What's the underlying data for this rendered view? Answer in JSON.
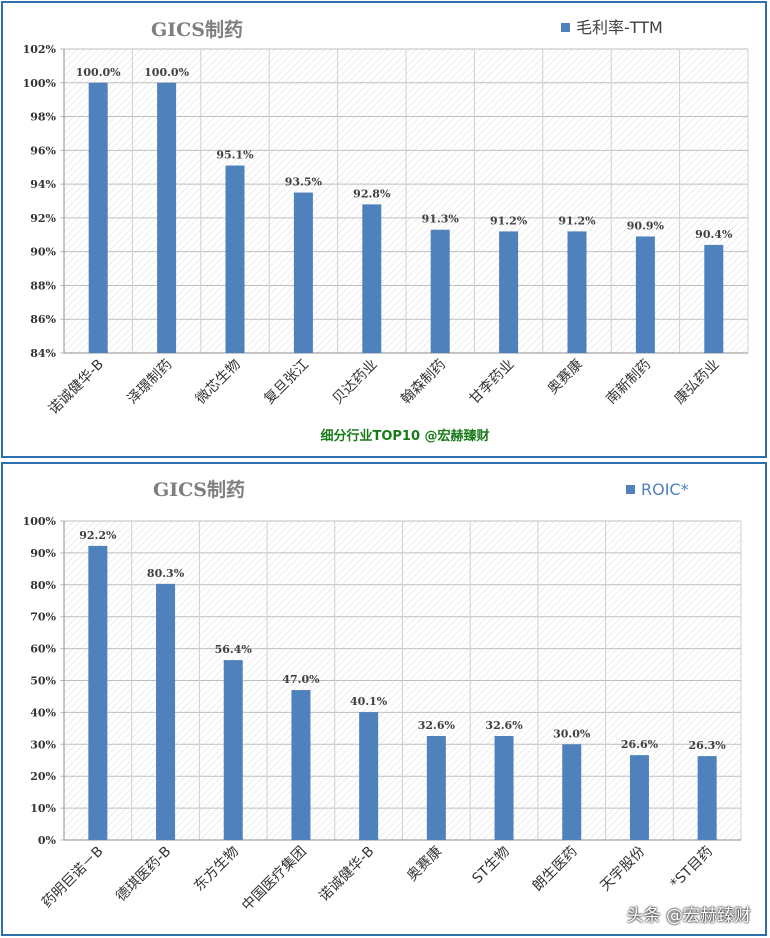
{
  "colors": {
    "bar": "#4f81bd",
    "frame": "#2f6fb0",
    "title": "#7f7f7f",
    "note": "#1a7a1a"
  },
  "chart_data": [
    {
      "type": "bar",
      "title": "GICS制药",
      "legend": "毛利率-TTM",
      "legend_position": "top-right",
      "note": "细分行业TOP10 @宏赫臻财",
      "grid": true,
      "ylim": [
        84,
        102
      ],
      "yticks": [
        84,
        86,
        88,
        90,
        92,
        94,
        96,
        98,
        100,
        102
      ],
      "ytick_labels": [
        "84%",
        "86%",
        "88%",
        "90%",
        "92%",
        "94%",
        "96%",
        "98%",
        "100%",
        "102%"
      ],
      "categories": [
        "诺诚健华-B",
        "泽璟制药",
        "微芯生物",
        "复旦张江",
        "贝达药业",
        "翰森制药",
        "甘李药业",
        "奥赛康",
        "南新制药",
        "康弘药业"
      ],
      "values": [
        100.0,
        100.0,
        95.1,
        93.5,
        92.8,
        91.3,
        91.2,
        91.2,
        90.9,
        90.4
      ],
      "data_labels": [
        "100.0%",
        "100.0%",
        "95.1%",
        "93.5%",
        "92.8%",
        "91.3%",
        "91.2%",
        "91.2%",
        "90.9%",
        "90.4%"
      ]
    },
    {
      "type": "bar",
      "title": "GICS制药",
      "legend": "ROIC*",
      "legend_position": "top-right",
      "grid": true,
      "ylim": [
        0,
        100
      ],
      "yticks": [
        0,
        10,
        20,
        30,
        40,
        50,
        60,
        70,
        80,
        90,
        100
      ],
      "ytick_labels": [
        "0%",
        "10%",
        "20%",
        "30%",
        "40%",
        "50%",
        "60%",
        "70%",
        "80%",
        "90%",
        "100%"
      ],
      "categories": [
        "药明巨诺－B",
        "德琪医药-B",
        "东方生物",
        "中国医疗集团",
        "诺诚健华-B",
        "奥赛康",
        "ST生物",
        "朗生医药",
        "天宇股份",
        "*ST目药"
      ],
      "values": [
        92.2,
        80.3,
        56.4,
        47.0,
        40.1,
        32.6,
        32.6,
        30.0,
        26.6,
        26.3
      ],
      "data_labels": [
        "92.2%",
        "80.3%",
        "56.4%",
        "47.0%",
        "40.1%",
        "32.6%",
        "32.6%",
        "30.0%",
        "26.6%",
        "26.3%"
      ]
    }
  ],
  "watermark": "头条 @宏赫臻财"
}
